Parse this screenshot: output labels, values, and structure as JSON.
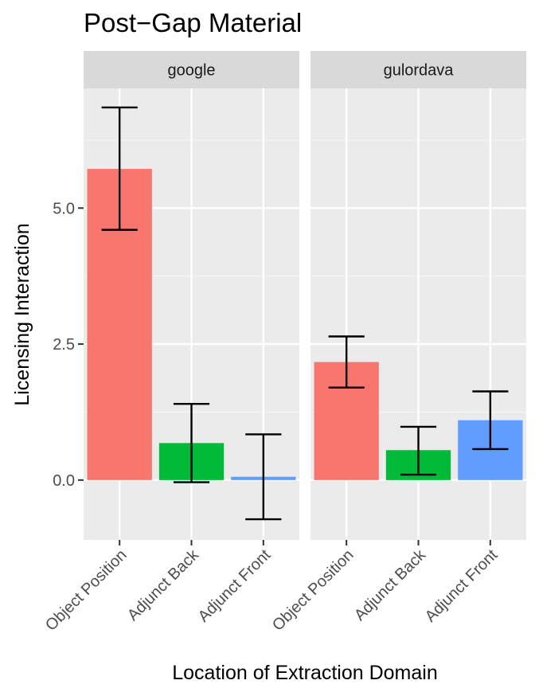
{
  "chart_data": {
    "type": "bar",
    "title": "Post−Gap Material",
    "xlabel": "Location of Extraction Domain",
    "ylabel": "Licensing Interaction",
    "ylim": [
      -1.1,
      7.2
    ],
    "yticks": [
      0.0,
      2.5,
      5.0
    ],
    "ytick_labels": [
      "0.0",
      "2.5",
      "5.0"
    ],
    "grid": true,
    "legend": "none",
    "categories": [
      "Object Position",
      "Adjunct Back",
      "Adjunct Front"
    ],
    "colors": [
      "#F8766D",
      "#00BA38",
      "#619CFF"
    ],
    "panels": [
      {
        "name": "google",
        "values": [
          5.72,
          0.68,
          0.06
        ],
        "error_low": [
          4.6,
          -0.04,
          -0.72
        ],
        "error_high": [
          6.85,
          1.4,
          0.84
        ]
      },
      {
        "name": "gulordava",
        "values": [
          2.17,
          0.55,
          1.1
        ],
        "error_low": [
          1.7,
          0.1,
          0.57
        ],
        "error_high": [
          2.64,
          0.98,
          1.63
        ]
      }
    ]
  }
}
